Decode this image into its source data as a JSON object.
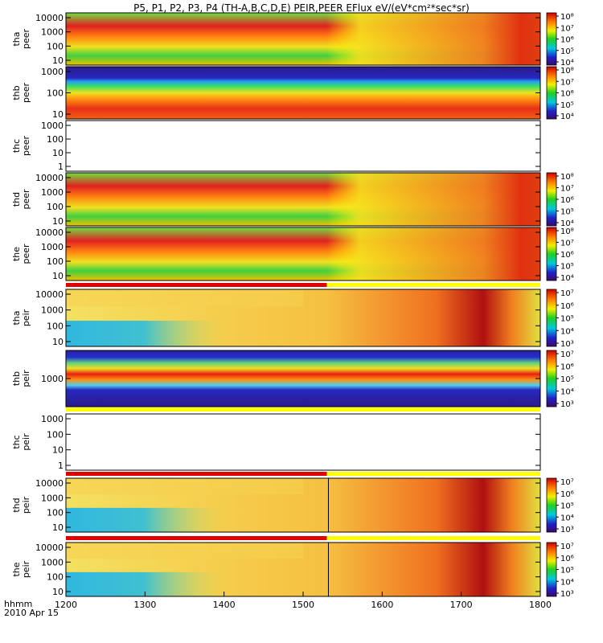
{
  "title": "P5, P1, P2, P3, P4 (TH-A,B,C,D,E) PEIR,PEER EFlux eV/(eV*cm²*sec*sr)",
  "x_axis": {
    "label_line1": "hhmm",
    "label_line2": "2010 Apr 15",
    "ticks": [
      "1200",
      "1300",
      "1400",
      "1500",
      "1600",
      "1700",
      "1800"
    ]
  },
  "chart_data": {
    "type": "heatmap",
    "title": "P5, P1, P2, P3, P4 (TH-A,B,C,D,E) PEIR,PEER EFlux eV/(eV*cm²*sec*sr)",
    "xlabel": "hhmm",
    "date": "2010 Apr 15",
    "xlim": [
      1200,
      1800
    ],
    "x_ticks": [
      1200,
      1300,
      1400,
      1500,
      1600,
      1700,
      1800
    ],
    "y_scale": "log",
    "color_scale": "log",
    "colormap": "rainbow (purple-blue-cyan-green-yellow-orange-red)",
    "panels": [
      {
        "ylabel": [
          "tha",
          "peer"
        ],
        "yticks": [
          "10",
          "100",
          "1000",
          "10000"
        ],
        "cbar_ticks": [
          "10⁴",
          "10⁵",
          "10⁶",
          "10⁷",
          "10⁸"
        ],
        "has_data": true,
        "status_bar": false
      },
      {
        "ylabel": [
          "thb",
          "peer"
        ],
        "yticks": [
          "10",
          "100",
          "1000"
        ],
        "cbar_ticks": [
          "10⁴",
          "10⁵",
          "10⁶",
          "10⁷",
          "10⁸"
        ],
        "has_data": true,
        "status_bar": false
      },
      {
        "ylabel": [
          "thc",
          "peer"
        ],
        "yticks": [
          "1",
          "10",
          "100",
          "1000"
        ],
        "cbar_ticks": [],
        "has_data": false,
        "status_bar": false
      },
      {
        "ylabel": [
          "thd",
          "peer"
        ],
        "yticks": [
          "10",
          "100",
          "1000",
          "10000"
        ],
        "cbar_ticks": [
          "10⁴",
          "10⁵",
          "10⁶",
          "10⁷",
          "10⁸"
        ],
        "has_data": true,
        "status_bar": false
      },
      {
        "ylabel": [
          "the",
          "peer"
        ],
        "yticks": [
          "10",
          "100",
          "1000",
          "10000"
        ],
        "cbar_ticks": [
          "10⁴",
          "10⁵",
          "10⁶",
          "10⁷",
          "10⁸"
        ],
        "has_data": true,
        "status_bar": false
      },
      {
        "ylabel": [
          "tha",
          "peir"
        ],
        "yticks": [
          "10",
          "100",
          "1000",
          "10000"
        ],
        "cbar_ticks": [
          "10³",
          "10⁴",
          "10⁵",
          "10⁶",
          "10⁷"
        ],
        "has_data": true,
        "status_bar": true,
        "status_red_until": 1530
      },
      {
        "ylabel": [
          "thb",
          "peir"
        ],
        "yticks": [
          "1000"
        ],
        "cbar_ticks": [
          "10³",
          "10⁴",
          "10⁵",
          "10⁶",
          "10⁷"
        ],
        "has_data": true,
        "status_bar": false
      },
      {
        "ylabel": [
          "thc",
          "peir"
        ],
        "yticks": [
          "1",
          "10",
          "100",
          "1000"
        ],
        "cbar_ticks": [],
        "has_data": false,
        "status_bar": true,
        "status_red_until": 1200
      },
      {
        "ylabel": [
          "thd",
          "peir"
        ],
        "yticks": [
          "10",
          "100",
          "1000",
          "10000"
        ],
        "cbar_ticks": [
          "10³",
          "10⁴",
          "10⁵",
          "10⁶",
          "10⁷"
        ],
        "has_data": true,
        "status_bar": true,
        "status_red_until": 1530,
        "marker_x": 1532
      },
      {
        "ylabel": [
          "the",
          "peir"
        ],
        "yticks": [
          "10",
          "100",
          "1000",
          "10000"
        ],
        "cbar_ticks": [
          "10³",
          "10⁴",
          "10⁵",
          "10⁶",
          "10⁷"
        ],
        "has_data": true,
        "status_bar": true,
        "status_red_until": 1530,
        "marker_x": 1532
      }
    ]
  }
}
